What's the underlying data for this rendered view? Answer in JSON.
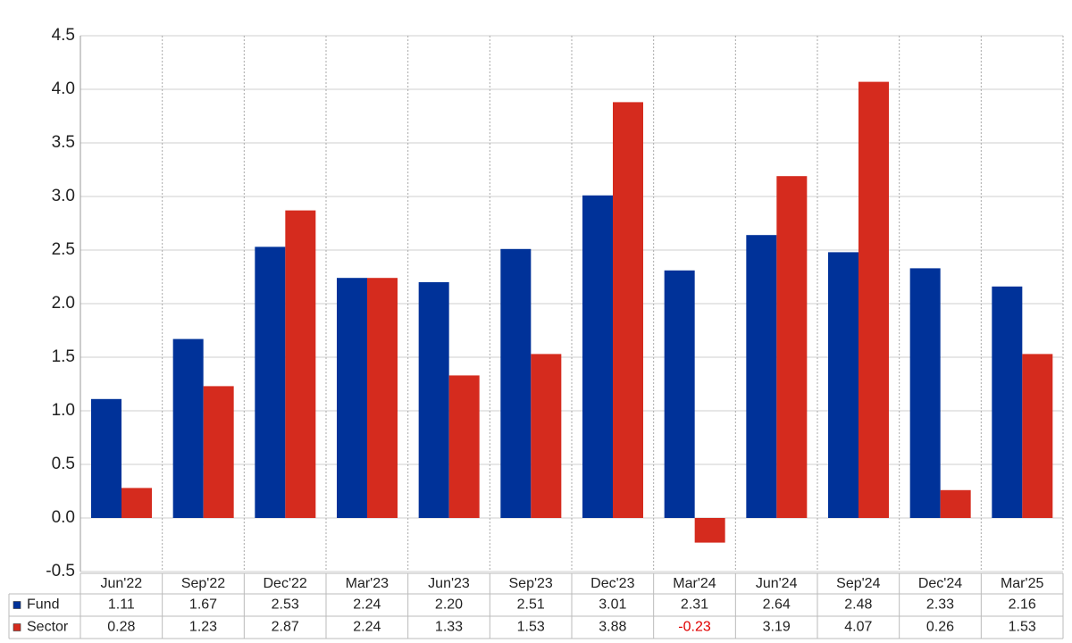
{
  "chart_data": {
    "type": "bar",
    "categories": [
      "Jun'22",
      "Sep'22",
      "Dec'22",
      "Mar'23",
      "Jun'23",
      "Sep'23",
      "Dec'23",
      "Mar'24",
      "Jun'24",
      "Sep'24",
      "Dec'24",
      "Mar'25"
    ],
    "series": [
      {
        "name": "Fund",
        "color": "#003299",
        "values": [
          1.11,
          1.67,
          2.53,
          2.24,
          2.2,
          2.51,
          3.01,
          2.31,
          2.64,
          2.48,
          2.33,
          2.16
        ],
        "value_labels": [
          "1.11",
          "1.67",
          "2.53",
          "2.24",
          "2.20",
          "2.51",
          "3.01",
          "2.31",
          "2.64",
          "2.48",
          "2.33",
          "2.16"
        ]
      },
      {
        "name": "Sector",
        "color": "#d52b1e",
        "values": [
          0.28,
          1.23,
          2.87,
          2.24,
          1.33,
          1.53,
          3.88,
          -0.23,
          3.19,
          4.07,
          0.26,
          1.53
        ],
        "value_labels": [
          "0.28",
          "1.23",
          "2.87",
          "2.24",
          "1.33",
          "1.53",
          "3.88",
          "-0.23",
          "3.19",
          "4.07",
          "0.26",
          "1.53"
        ]
      }
    ],
    "ylim": [
      -0.5,
      4.5
    ],
    "yticks": [
      -0.5,
      {
        "value": 0,
        "label": "0.0"
      },
      0.5,
      {
        "value": 1,
        "label": "1.0"
      },
      1.5,
      {
        "value": 2,
        "label": "2.0"
      },
      2.5,
      {
        "value": 3,
        "label": "3.0"
      },
      3.5,
      {
        "value": 4,
        "label": "4.0"
      },
      4.5
    ],
    "grid": true
  }
}
